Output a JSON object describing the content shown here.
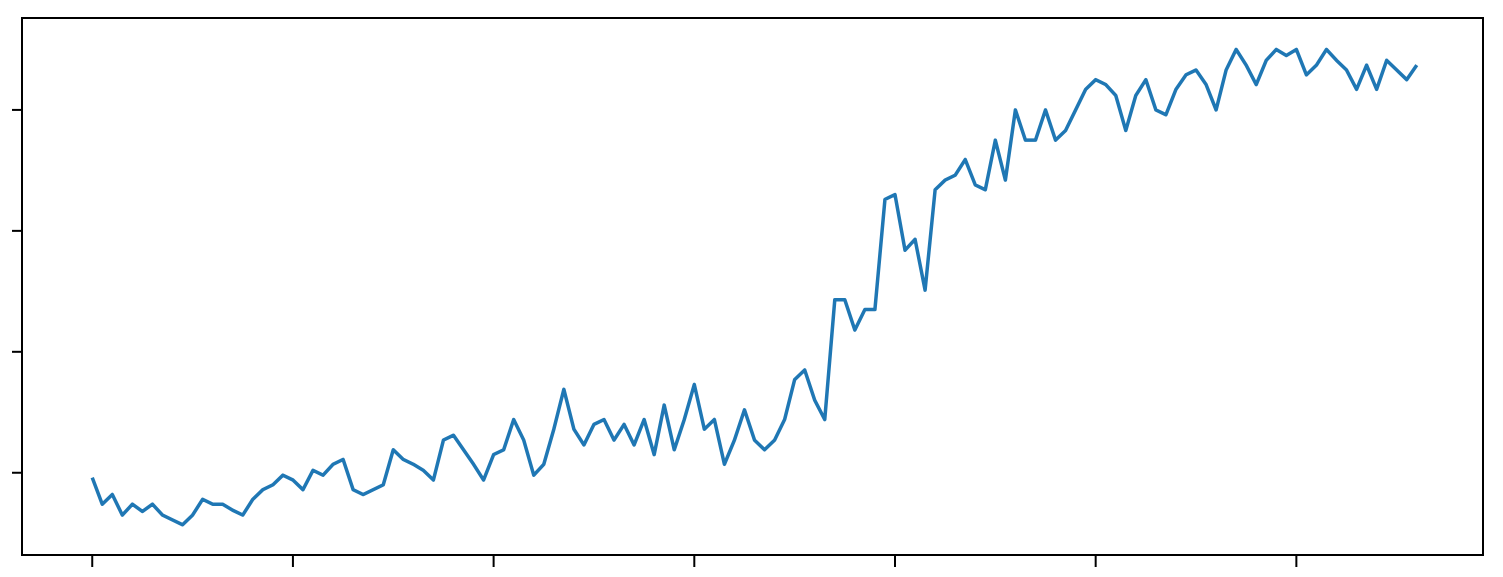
{
  "chart_data": {
    "type": "line",
    "color": "#1f77b4",
    "x": [
      0,
      5,
      10,
      15,
      20,
      25,
      30,
      35,
      40,
      45,
      50,
      55,
      60,
      65,
      70,
      75,
      80,
      85,
      90,
      95,
      100,
      105,
      110,
      115,
      120,
      125,
      130,
      135,
      140,
      145,
      150,
      155,
      160,
      165,
      170,
      175,
      180,
      185,
      190,
      195,
      200,
      205,
      210,
      215,
      220,
      225,
      230,
      235,
      240,
      245,
      250,
      255,
      260,
      265,
      270,
      275,
      280,
      285,
      290,
      295,
      300,
      305,
      310,
      315,
      320,
      325,
      330,
      335,
      340,
      345,
      350,
      355,
      360,
      365,
      370,
      375,
      380,
      385,
      390,
      395,
      400,
      405,
      410,
      415,
      420,
      425,
      430,
      435,
      440,
      445,
      450,
      455,
      460,
      465,
      470,
      475,
      480,
      485,
      490,
      495,
      500,
      505,
      510,
      515,
      520,
      525,
      530,
      535,
      540,
      545,
      550,
      555,
      560,
      565,
      570,
      575,
      580,
      585,
      590,
      595,
      600,
      605,
      610,
      615,
      620,
      625,
      630,
      635,
      640,
      645,
      650,
      655,
      660
    ],
    "values": [
      -0.04,
      -0.26,
      -0.18,
      -0.35,
      -0.26,
      -0.32,
      -0.26,
      -0.35,
      -0.39,
      -0.43,
      -0.35,
      -0.22,
      -0.26,
      -0.26,
      -0.31,
      -0.35,
      -0.22,
      -0.14,
      -0.1,
      -0.02,
      -0.06,
      -0.14,
      0.02,
      -0.02,
      0.07,
      0.11,
      -0.14,
      -0.18,
      -0.14,
      -0.1,
      0.19,
      0.11,
      0.07,
      0.02,
      -0.06,
      0.27,
      0.31,
      0.19,
      0.07,
      -0.06,
      0.15,
      0.19,
      0.44,
      0.27,
      -0.02,
      0.07,
      0.36,
      0.69,
      0.36,
      0.23,
      0.4,
      0.44,
      0.27,
      0.4,
      0.23,
      0.44,
      0.15,
      0.56,
      0.19,
      0.44,
      0.73,
      0.36,
      0.44,
      0.07,
      0.27,
      0.52,
      0.27,
      0.19,
      0.27,
      0.44,
      0.77,
      0.85,
      0.6,
      0.44,
      1.43,
      1.43,
      1.18,
      1.35,
      1.35,
      2.26,
      2.3,
      1.84,
      1.93,
      1.51,
      2.34,
      2.42,
      2.46,
      2.59,
      2.38,
      2.34,
      2.75,
      2.42,
      3.0,
      2.75,
      2.75,
      3.0,
      2.75,
      2.83,
      3.0,
      3.17,
      3.25,
      3.21,
      3.12,
      2.83,
      3.12,
      3.25,
      3.0,
      2.96,
      3.17,
      3.29,
      3.33,
      3.21,
      3.0,
      3.33,
      3.5,
      3.37,
      3.21,
      3.41,
      3.5,
      3.45,
      3.5,
      3.29,
      3.37,
      3.5,
      3.41,
      3.33,
      3.17,
      3.37,
      3.17,
      3.41,
      3.33,
      3.25,
      3.37
    ],
    "xlim": [
      -35,
      693
    ],
    "xticks": [
      0,
      100,
      200,
      300,
      400,
      500,
      600
    ],
    "ylim": [
      -0.68,
      3.76
    ],
    "yticks": [
      0,
      1,
      2,
      3
    ]
  }
}
